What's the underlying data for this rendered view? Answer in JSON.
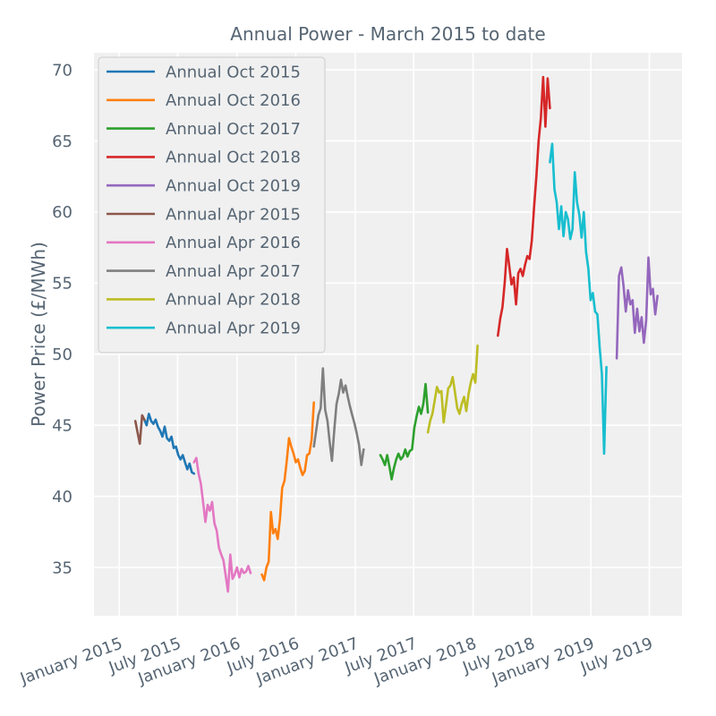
{
  "chart_data": {
    "type": "line",
    "title": "Annual Power - March 2015 to date",
    "xlabel": "",
    "ylabel": "Power Price (£/MWh)",
    "ylim": [
      31.6,
      71.2
    ],
    "xlim": [
      "2014-10-15",
      "2019-10-10"
    ],
    "yticks": [
      35,
      40,
      45,
      50,
      55,
      60,
      65,
      70
    ],
    "xticks": [
      {
        "date": "2015-01-01",
        "label": "January 2015"
      },
      {
        "date": "2015-07-01",
        "label": "July 2015"
      },
      {
        "date": "2016-01-01",
        "label": "January 2016"
      },
      {
        "date": "2016-07-01",
        "label": "July 2016"
      },
      {
        "date": "2017-01-01",
        "label": "January 2017"
      },
      {
        "date": "2017-07-01",
        "label": "July 2017"
      },
      {
        "date": "2018-01-01",
        "label": "January 2018"
      },
      {
        "date": "2018-07-01",
        "label": "July 2018"
      },
      {
        "date": "2019-01-01",
        "label": "January 2019"
      },
      {
        "date": "2019-07-01",
        "label": "July 2019"
      }
    ],
    "grid": true,
    "legend_position": "top-left",
    "series": [
      {
        "name": "Annual Oct 2015",
        "color": "#1f77b4",
        "points": [
          [
            "2015-03-20",
            45.4
          ],
          [
            "2015-03-27",
            45.0
          ],
          [
            "2015-04-03",
            45.8
          ],
          [
            "2015-04-10",
            45.3
          ],
          [
            "2015-04-17",
            45.1
          ],
          [
            "2015-04-24",
            45.4
          ],
          [
            "2015-05-01",
            44.9
          ],
          [
            "2015-05-08",
            44.6
          ],
          [
            "2015-05-15",
            44.2
          ],
          [
            "2015-05-22",
            44.9
          ],
          [
            "2015-05-29",
            44.1
          ],
          [
            "2015-06-05",
            43.9
          ],
          [
            "2015-06-12",
            44.2
          ],
          [
            "2015-06-19",
            43.4
          ],
          [
            "2015-06-26",
            43.5
          ],
          [
            "2015-07-03",
            42.9
          ],
          [
            "2015-07-10",
            42.6
          ],
          [
            "2015-07-17",
            42.9
          ],
          [
            "2015-07-24",
            42.4
          ],
          [
            "2015-07-31",
            41.9
          ],
          [
            "2015-08-07",
            42.3
          ],
          [
            "2015-08-14",
            41.7
          ],
          [
            "2015-08-21",
            41.6
          ]
        ]
      },
      {
        "name": "Annual Oct 2016",
        "color": "#ff7f0e",
        "points": [
          [
            "2016-03-18",
            34.5
          ],
          [
            "2016-03-25",
            34.1
          ],
          [
            "2016-04-01",
            35.0
          ],
          [
            "2016-04-08",
            35.4
          ],
          [
            "2016-04-15",
            38.9
          ],
          [
            "2016-04-22",
            37.4
          ],
          [
            "2016-04-29",
            37.7
          ],
          [
            "2016-05-06",
            37.0
          ],
          [
            "2016-05-13",
            38.4
          ],
          [
            "2016-05-20",
            40.6
          ],
          [
            "2016-05-27",
            41.1
          ],
          [
            "2016-06-03",
            42.5
          ],
          [
            "2016-06-10",
            44.1
          ],
          [
            "2016-06-17",
            43.5
          ],
          [
            "2016-06-24",
            43.0
          ],
          [
            "2016-07-01",
            42.4
          ],
          [
            "2016-07-08",
            42.6
          ],
          [
            "2016-07-15",
            42.0
          ],
          [
            "2016-07-22",
            41.5
          ],
          [
            "2016-07-29",
            41.8
          ],
          [
            "2016-08-05",
            42.9
          ],
          [
            "2016-08-12",
            43.0
          ],
          [
            "2016-08-19",
            44.0
          ],
          [
            "2016-08-26",
            46.6
          ]
        ]
      },
      {
        "name": "Annual Oct 2017",
        "color": "#2ca02c",
        "points": [
          [
            "2017-03-20",
            42.9
          ],
          [
            "2017-03-27",
            42.6
          ],
          [
            "2017-04-03",
            42.2
          ],
          [
            "2017-04-10",
            42.9
          ],
          [
            "2017-04-17",
            42.1
          ],
          [
            "2017-04-24",
            41.2
          ],
          [
            "2017-05-01",
            42.0
          ],
          [
            "2017-05-08",
            42.6
          ],
          [
            "2017-05-15",
            43.0
          ],
          [
            "2017-05-22",
            42.6
          ],
          [
            "2017-05-29",
            42.8
          ],
          [
            "2017-06-05",
            43.3
          ],
          [
            "2017-06-12",
            42.8
          ],
          [
            "2017-06-19",
            43.2
          ],
          [
            "2017-06-26",
            43.3
          ],
          [
            "2017-07-03",
            44.8
          ],
          [
            "2017-07-10",
            45.6
          ],
          [
            "2017-07-17",
            46.3
          ],
          [
            "2017-07-24",
            45.8
          ],
          [
            "2017-07-31",
            46.5
          ],
          [
            "2017-08-07",
            47.9
          ],
          [
            "2017-08-14",
            45.9
          ]
        ]
      },
      {
        "name": "Annual Oct 2018",
        "color": "#d62728",
        "points": [
          [
            "2018-03-19",
            51.3
          ],
          [
            "2018-03-26",
            52.5
          ],
          [
            "2018-04-02",
            53.3
          ],
          [
            "2018-04-09",
            55.0
          ],
          [
            "2018-04-16",
            57.4
          ],
          [
            "2018-04-23",
            56.2
          ],
          [
            "2018-04-30",
            54.9
          ],
          [
            "2018-05-07",
            55.4
          ],
          [
            "2018-05-14",
            53.5
          ],
          [
            "2018-05-21",
            55.7
          ],
          [
            "2018-05-28",
            56.0
          ],
          [
            "2018-06-04",
            55.5
          ],
          [
            "2018-06-11",
            56.3
          ],
          [
            "2018-06-18",
            56.9
          ],
          [
            "2018-06-25",
            56.7
          ],
          [
            "2018-07-02",
            58.0
          ],
          [
            "2018-07-09",
            60.4
          ],
          [
            "2018-07-16",
            62.5
          ],
          [
            "2018-07-23",
            65.0
          ],
          [
            "2018-07-30",
            66.6
          ],
          [
            "2018-08-06",
            69.5
          ],
          [
            "2018-08-13",
            66.0
          ],
          [
            "2018-08-20",
            69.4
          ],
          [
            "2018-08-27",
            67.3
          ]
        ]
      },
      {
        "name": "Annual Oct 2019",
        "color": "#9467bd",
        "points": [
          [
            "2019-03-22",
            49.7
          ],
          [
            "2019-03-29",
            55.5
          ],
          [
            "2019-04-05",
            56.1
          ],
          [
            "2019-04-12",
            54.8
          ],
          [
            "2019-04-19",
            53.0
          ],
          [
            "2019-04-26",
            54.5
          ],
          [
            "2019-05-03",
            53.5
          ],
          [
            "2019-05-10",
            53.8
          ],
          [
            "2019-05-17",
            51.5
          ],
          [
            "2019-05-24",
            53.2
          ],
          [
            "2019-05-31",
            51.6
          ],
          [
            "2019-06-07",
            52.6
          ],
          [
            "2019-06-14",
            50.8
          ],
          [
            "2019-06-21",
            52.4
          ],
          [
            "2019-06-28",
            56.8
          ],
          [
            "2019-07-05",
            54.2
          ],
          [
            "2019-07-12",
            54.6
          ],
          [
            "2019-07-19",
            52.8
          ],
          [
            "2019-07-26",
            54.1
          ]
        ]
      },
      {
        "name": "Annual Apr 2015",
        "color": "#8c564b",
        "points": [
          [
            "2015-02-20",
            45.3
          ],
          [
            "2015-02-27",
            44.5
          ],
          [
            "2015-03-06",
            43.7
          ],
          [
            "2015-03-13",
            45.7
          ],
          [
            "2015-03-20",
            45.4
          ]
        ]
      },
      {
        "name": "Annual Apr 2016",
        "color": "#e377c2",
        "points": [
          [
            "2015-08-21",
            42.4
          ],
          [
            "2015-08-28",
            42.7
          ],
          [
            "2015-09-04",
            41.6
          ],
          [
            "2015-09-11",
            40.9
          ],
          [
            "2015-09-18",
            39.6
          ],
          [
            "2015-09-25",
            38.2
          ],
          [
            "2015-10-02",
            39.4
          ],
          [
            "2015-10-09",
            39.0
          ],
          [
            "2015-10-16",
            39.6
          ],
          [
            "2015-10-23",
            38.1
          ],
          [
            "2015-10-30",
            37.6
          ],
          [
            "2015-11-06",
            36.4
          ],
          [
            "2015-11-13",
            35.9
          ],
          [
            "2015-11-20",
            35.5
          ],
          [
            "2015-11-27",
            34.4
          ],
          [
            "2015-12-04",
            33.3
          ],
          [
            "2015-12-11",
            35.9
          ],
          [
            "2015-12-18",
            34.2
          ],
          [
            "2015-12-25",
            34.5
          ],
          [
            "2016-01-01",
            35.0
          ],
          [
            "2016-01-08",
            34.3
          ],
          [
            "2016-01-15",
            34.9
          ],
          [
            "2016-01-22",
            34.6
          ],
          [
            "2016-01-29",
            34.7
          ],
          [
            "2016-02-05",
            35.1
          ],
          [
            "2016-02-12",
            34.6
          ]
        ]
      },
      {
        "name": "Annual Apr 2017",
        "color": "#7f7f7f",
        "points": [
          [
            "2016-08-26",
            43.5
          ],
          [
            "2016-09-02",
            44.6
          ],
          [
            "2016-09-09",
            45.7
          ],
          [
            "2016-09-16",
            46.2
          ],
          [
            "2016-09-23",
            49.0
          ],
          [
            "2016-09-30",
            46.1
          ],
          [
            "2016-10-07",
            45.3
          ],
          [
            "2016-10-14",
            43.8
          ],
          [
            "2016-10-21",
            42.5
          ],
          [
            "2016-10-28",
            44.6
          ],
          [
            "2016-11-04",
            46.5
          ],
          [
            "2016-11-11",
            47.2
          ],
          [
            "2016-11-18",
            48.2
          ],
          [
            "2016-11-25",
            47.3
          ],
          [
            "2016-12-02",
            47.8
          ],
          [
            "2016-12-09",
            47.0
          ],
          [
            "2016-12-16",
            46.3
          ],
          [
            "2016-12-23",
            45.7
          ],
          [
            "2016-12-30",
            45.1
          ],
          [
            "2017-01-06",
            44.4
          ],
          [
            "2017-01-13",
            43.6
          ],
          [
            "2017-01-20",
            42.2
          ],
          [
            "2017-01-27",
            43.3
          ]
        ]
      },
      {
        "name": "Annual Apr 2018",
        "color": "#bcbd22",
        "points": [
          [
            "2017-08-14",
            44.5
          ],
          [
            "2017-08-21",
            45.3
          ],
          [
            "2017-08-28",
            45.8
          ],
          [
            "2017-09-04",
            46.7
          ],
          [
            "2017-09-11",
            47.7
          ],
          [
            "2017-09-18",
            47.3
          ],
          [
            "2017-09-25",
            47.4
          ],
          [
            "2017-10-02",
            45.2
          ],
          [
            "2017-10-09",
            46.4
          ],
          [
            "2017-10-16",
            47.6
          ],
          [
            "2017-10-23",
            47.8
          ],
          [
            "2017-10-30",
            48.4
          ],
          [
            "2017-11-06",
            47.3
          ],
          [
            "2017-11-13",
            46.2
          ],
          [
            "2017-11-20",
            45.8
          ],
          [
            "2017-11-27",
            46.5
          ],
          [
            "2017-12-04",
            47.0
          ],
          [
            "2017-12-11",
            46.0
          ],
          [
            "2017-12-18",
            47.2
          ],
          [
            "2017-12-25",
            48.0
          ],
          [
            "2018-01-01",
            48.6
          ],
          [
            "2018-01-08",
            48.0
          ],
          [
            "2018-01-15",
            50.6
          ]
        ]
      },
      {
        "name": "Annual Apr 2019",
        "color": "#17becf",
        "points": [
          [
            "2018-08-27",
            63.5
          ],
          [
            "2018-09-03",
            64.8
          ],
          [
            "2018-09-10",
            61.6
          ],
          [
            "2018-09-17",
            60.7
          ],
          [
            "2018-09-24",
            58.8
          ],
          [
            "2018-10-01",
            60.4
          ],
          [
            "2018-10-08",
            58.3
          ],
          [
            "2018-10-15",
            60.0
          ],
          [
            "2018-10-22",
            59.5
          ],
          [
            "2018-10-29",
            58.1
          ],
          [
            "2018-11-05",
            58.8
          ],
          [
            "2018-11-12",
            62.8
          ],
          [
            "2018-11-19",
            60.7
          ],
          [
            "2018-11-26",
            59.8
          ],
          [
            "2018-12-03",
            58.2
          ],
          [
            "2018-12-10",
            60.0
          ],
          [
            "2018-12-17",
            57.2
          ],
          [
            "2018-12-24",
            56.0
          ],
          [
            "2018-12-31",
            53.8
          ],
          [
            "2019-01-07",
            54.3
          ],
          [
            "2019-01-14",
            53.0
          ],
          [
            "2019-01-21",
            52.8
          ],
          [
            "2019-01-28",
            50.5
          ],
          [
            "2019-02-04",
            48.6
          ],
          [
            "2019-02-11",
            43.0
          ],
          [
            "2019-02-18",
            49.1
          ]
        ]
      }
    ]
  }
}
